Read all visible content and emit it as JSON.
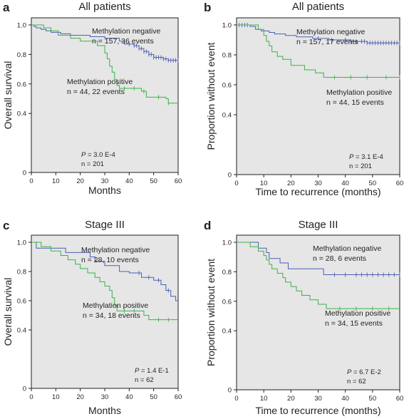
{
  "colors": {
    "plot_bg": "#e6e6e6",
    "negative": "#4d5fb5",
    "positive": "#3cb24a",
    "axis": "#231f20"
  },
  "chart_data": [
    {
      "type": "line",
      "panel_letter": "a",
      "title": "All patients",
      "xlabel": "Months",
      "ylabel": "Overall survival",
      "xlim": [
        0,
        60
      ],
      "ylim": [
        0,
        1.0
      ],
      "x_ticks": [
        0,
        10,
        20,
        30,
        40,
        50,
        60
      ],
      "y_ticks": [
        0,
        0.4,
        0.6,
        0.8,
        1.0
      ],
      "y_tick_labels": [
        "0",
        "0.4",
        "0.6",
        "0.8",
        "1.0"
      ],
      "grid": false,
      "series": [
        {
          "name": "Methylation negative",
          "label_lines": [
            "Methylation negative",
            "n = 157, 36 events"
          ],
          "color": "#4d5fb5",
          "steps": [
            [
              0,
              1.0
            ],
            [
              1,
              0.99
            ],
            [
              2,
              0.98
            ],
            [
              4,
              0.97
            ],
            [
              6,
              0.96
            ],
            [
              8,
              0.95
            ],
            [
              12,
              0.94
            ],
            [
              16,
              0.93
            ],
            [
              24,
              0.92
            ],
            [
              30,
              0.91
            ],
            [
              36,
              0.89
            ],
            [
              38,
              0.87
            ],
            [
              42,
              0.86
            ],
            [
              44,
              0.84
            ],
            [
              46,
              0.82
            ],
            [
              48,
              0.8
            ],
            [
              50,
              0.78
            ],
            [
              54,
              0.77
            ],
            [
              56,
              0.76
            ],
            [
              60,
              0.76
            ]
          ],
          "censored": [
            40,
            42,
            43,
            44,
            45,
            46,
            47,
            48,
            49,
            50,
            51,
            52,
            53,
            54,
            55,
            56,
            57,
            58,
            59,
            60
          ]
        },
        {
          "name": "Methylation positive",
          "label_lines": [
            "Methylation positive",
            "n = 44, 22 events"
          ],
          "color": "#3cb24a",
          "steps": [
            [
              0,
              1.0
            ],
            [
              5,
              0.98
            ],
            [
              8,
              0.96
            ],
            [
              11,
              0.93
            ],
            [
              16,
              0.91
            ],
            [
              20,
              0.89
            ],
            [
              27,
              0.86
            ],
            [
              30,
              0.81
            ],
            [
              31,
              0.77
            ],
            [
              32,
              0.72
            ],
            [
              33,
              0.68
            ],
            [
              34,
              0.63
            ],
            [
              35,
              0.59
            ],
            [
              36,
              0.57
            ],
            [
              45,
              0.55
            ],
            [
              47,
              0.51
            ],
            [
              55,
              0.5
            ],
            [
              56,
              0.47
            ],
            [
              60,
              0.47
            ]
          ],
          "censored": [
            38,
            42,
            46,
            52,
            56
          ]
        }
      ],
      "stat_p_prefix": "P",
      "stat_p_value": " = 3.0 E-4",
      "stat_n": "n = 201"
    },
    {
      "type": "line",
      "panel_letter": "b",
      "title": "All patients",
      "xlabel": "Time to recurrence (months)",
      "ylabel": "Proportion without event",
      "xlim": [
        0,
        60
      ],
      "ylim": [
        0,
        1.0
      ],
      "x_ticks": [
        0,
        10,
        20,
        30,
        40,
        50,
        60
      ],
      "y_ticks": [
        0,
        0.4,
        0.6,
        0.8,
        1.0
      ],
      "y_tick_labels": [
        "0",
        "0.4",
        "0.6",
        "0.8",
        "1.0"
      ],
      "grid": false,
      "series": [
        {
          "name": "Methylation negative",
          "label_lines": [
            "Methylation negative",
            "n = 157, 17 events"
          ],
          "color": "#4d5fb5",
          "steps": [
            [
              0,
              1.0
            ],
            [
              5,
              0.99
            ],
            [
              7,
              0.97
            ],
            [
              9,
              0.96
            ],
            [
              12,
              0.95
            ],
            [
              14,
              0.94
            ],
            [
              18,
              0.93
            ],
            [
              22,
              0.92
            ],
            [
              28,
              0.91
            ],
            [
              34,
              0.9
            ],
            [
              42,
              0.89
            ],
            [
              48,
              0.88
            ],
            [
              60,
              0.88
            ]
          ],
          "censored": [
            1,
            2,
            3,
            4,
            30,
            35,
            40,
            42,
            44,
            46,
            47,
            48,
            49,
            50,
            51,
            52,
            53,
            54,
            55,
            56,
            57,
            58,
            59,
            60
          ]
        },
        {
          "name": "Methylation positive",
          "label_lines": [
            "Methylation positive",
            "n = 44, 15 events"
          ],
          "color": "#3cb24a",
          "steps": [
            [
              0,
              1.0
            ],
            [
              8,
              0.97
            ],
            [
              10,
              0.93
            ],
            [
              11,
              0.89
            ],
            [
              12,
              0.86
            ],
            [
              13,
              0.82
            ],
            [
              15,
              0.79
            ],
            [
              17,
              0.77
            ],
            [
              20,
              0.73
            ],
            [
              25,
              0.7
            ],
            [
              29,
              0.68
            ],
            [
              32,
              0.65
            ],
            [
              60,
              0.65
            ]
          ],
          "censored": [
            36,
            42,
            48,
            55,
            60
          ]
        }
      ],
      "stat_p_prefix": "P",
      "stat_p_value": " = 3.1 E-4",
      "stat_n": "n = 201"
    },
    {
      "type": "line",
      "panel_letter": "c",
      "title": "Stage III",
      "xlabel": "Months",
      "ylabel": "Overall survival",
      "xlim": [
        0,
        60
      ],
      "ylim": [
        0,
        1.0
      ],
      "x_ticks": [
        0,
        10,
        20,
        30,
        40,
        50,
        60
      ],
      "y_ticks": [
        0,
        0.4,
        0.6,
        0.8,
        1.0
      ],
      "y_tick_labels": [
        "0",
        "0.4",
        "0.6",
        "0.8",
        "1.0"
      ],
      "grid": false,
      "series": [
        {
          "name": "Methylation negative",
          "label_lines": [
            "Methylation negative",
            "n = 28, 10 events"
          ],
          "color": "#4d5fb5",
          "steps": [
            [
              0,
              1.0
            ],
            [
              2,
              0.96
            ],
            [
              14,
              0.93
            ],
            [
              24,
              0.9
            ],
            [
              26,
              0.87
            ],
            [
              30,
              0.84
            ],
            [
              36,
              0.8
            ],
            [
              40,
              0.79
            ],
            [
              45,
              0.76
            ],
            [
              50,
              0.74
            ],
            [
              53,
              0.71
            ],
            [
              55,
              0.67
            ],
            [
              57,
              0.63
            ],
            [
              59,
              0.6
            ],
            [
              60,
              0.6
            ]
          ],
          "censored": [
            44,
            48,
            52,
            56
          ]
        },
        {
          "name": "Methylation positive",
          "label_lines": [
            "Methylation positive",
            "n = 34, 18 events"
          ],
          "color": "#3cb24a",
          "steps": [
            [
              0,
              1.0
            ],
            [
              4,
              0.97
            ],
            [
              8,
              0.94
            ],
            [
              12,
              0.91
            ],
            [
              15,
              0.88
            ],
            [
              18,
              0.85
            ],
            [
              20,
              0.82
            ],
            [
              23,
              0.79
            ],
            [
              26,
              0.76
            ],
            [
              28,
              0.73
            ],
            [
              30,
              0.7
            ],
            [
              32,
              0.67
            ],
            [
              33,
              0.62
            ],
            [
              34,
              0.57
            ],
            [
              35,
              0.53
            ],
            [
              46,
              0.5
            ],
            [
              48,
              0.47
            ],
            [
              60,
              0.47
            ]
          ],
          "censored": [
            38,
            42,
            52,
            56
          ]
        }
      ],
      "stat_p_prefix": "P",
      "stat_p_value": " = 1.4 E-1",
      "stat_n": "n = 62"
    },
    {
      "type": "line",
      "panel_letter": "d",
      "title": "Stage III",
      "xlabel": "Time to recurrence (months)",
      "ylabel": "Proportion without event",
      "xlim": [
        0,
        60
      ],
      "ylim": [
        0,
        1.0
      ],
      "x_ticks": [
        0,
        10,
        20,
        30,
        40,
        50,
        60
      ],
      "y_ticks": [
        0,
        0.4,
        0.6,
        0.8,
        1.0
      ],
      "y_tick_labels": [
        "0",
        "0.4",
        "0.6",
        "0.8",
        "1.0"
      ],
      "grid": false,
      "series": [
        {
          "name": "Methylation negative",
          "label_lines": [
            "Methylation negative",
            "n = 28, 6 events"
          ],
          "color": "#4d5fb5",
          "steps": [
            [
              0,
              1.0
            ],
            [
              8,
              0.96
            ],
            [
              11,
              0.93
            ],
            [
              12,
              0.89
            ],
            [
              16,
              0.86
            ],
            [
              19,
              0.82
            ],
            [
              32,
              0.78
            ],
            [
              60,
              0.78
            ]
          ],
          "censored": [
            36,
            40,
            44,
            46,
            48,
            50,
            52,
            54,
            56,
            58,
            60
          ]
        },
        {
          "name": "Methylation positive",
          "label_lines": [
            "Methylation positive",
            "n = 34, 15 events"
          ],
          "color": "#3cb24a",
          "steps": [
            [
              0,
              1.0
            ],
            [
              5,
              0.97
            ],
            [
              8,
              0.94
            ],
            [
              10,
              0.91
            ],
            [
              11,
              0.88
            ],
            [
              12,
              0.85
            ],
            [
              13,
              0.82
            ],
            [
              15,
              0.79
            ],
            [
              17,
              0.76
            ],
            [
              18,
              0.73
            ],
            [
              20,
              0.7
            ],
            [
              22,
              0.67
            ],
            [
              24,
              0.64
            ],
            [
              27,
              0.61
            ],
            [
              30,
              0.58
            ],
            [
              33,
              0.55
            ],
            [
              60,
              0.55
            ]
          ],
          "censored": [
            38,
            44,
            50,
            56
          ]
        }
      ],
      "stat_p_prefix": "P",
      "stat_p_value": " = 6.7 E-2",
      "stat_n": "n = 62"
    }
  ]
}
